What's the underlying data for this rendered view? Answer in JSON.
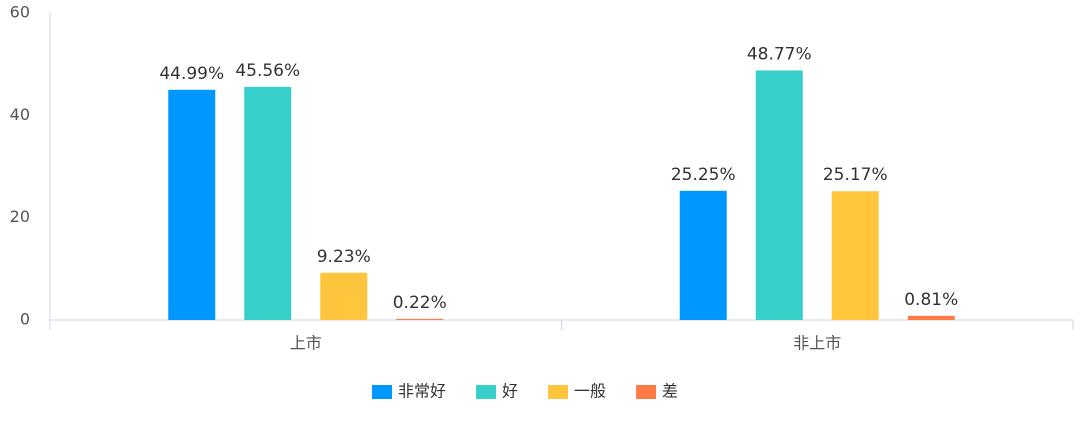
{
  "chart_data": {
    "type": "bar",
    "categories": [
      "上市",
      "非上市"
    ],
    "series": [
      {
        "name": "非常好",
        "color": "#0098ff",
        "values": [
          44.99,
          25.25
        ],
        "value_labels": [
          "44.99%",
          "25.25%"
        ]
      },
      {
        "name": "好",
        "color": "#36cfc9",
        "values": [
          45.56,
          48.77
        ],
        "value_labels": [
          "45.56%",
          "48.77%"
        ]
      },
      {
        "name": "一般",
        "color": "#ffc53d",
        "values": [
          9.23,
          25.17
        ],
        "value_labels": [
          "9.23%",
          "25.17%"
        ]
      },
      {
        "name": "差",
        "color": "#ff7a45",
        "values": [
          0.22,
          0.81
        ],
        "value_labels": [
          "0.22%",
          "0.81%"
        ]
      }
    ],
    "ylim": [
      0,
      60
    ],
    "yticks": [
      0,
      20,
      40,
      60
    ],
    "grid": false,
    "legend": "bottom"
  }
}
